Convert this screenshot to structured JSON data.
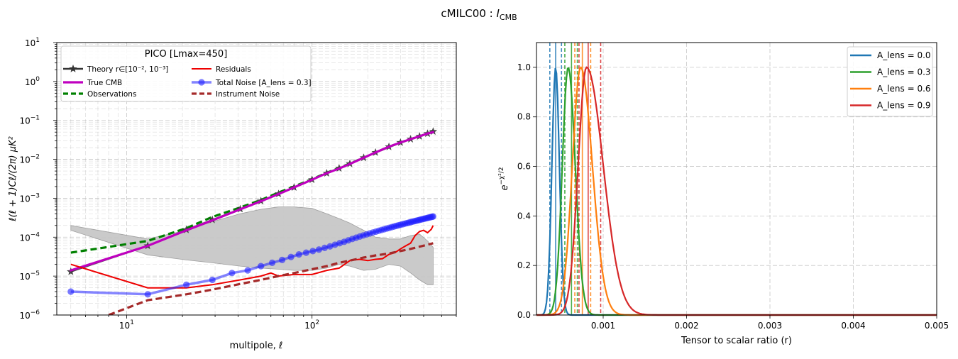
{
  "figure": {
    "suptitle": "cMILC00 : ",
    "suptitle_sym": "I",
    "suptitle_sub": "CMB"
  },
  "chart_data": [
    {
      "type": "line",
      "xscale": "log",
      "yscale": "log",
      "xlabel": "multipole, ℓ",
      "ylabel": "ℓ(ℓ + 1)Cℓ/(2π)  μK²",
      "xlim": [
        4.2,
        600
      ],
      "ylim": [
        1e-06,
        10
      ],
      "xticks": [
        {
          "v": 10,
          "b": "10",
          "e": "1"
        },
        {
          "v": 100,
          "b": "10",
          "e": "2"
        }
      ],
      "yticks": [
        {
          "v": 1e-06,
          "b": "10",
          "e": "−6"
        },
        {
          "v": 1e-05,
          "b": "10",
          "e": "−5"
        },
        {
          "v": 0.0001,
          "b": "10",
          "e": "−4"
        },
        {
          "v": 0.001,
          "b": "10",
          "e": "−3"
        },
        {
          "v": 0.01,
          "b": "10",
          "e": "−2"
        },
        {
          "v": 0.1,
          "b": "10",
          "e": "−1"
        },
        {
          "v": 1,
          "b": "10",
          "e": "0"
        },
        {
          "v": 10,
          "b": "10",
          "e": "1"
        }
      ],
      "grid": true,
      "legend": {
        "title": "PICO [Lmax=450]",
        "placement": "upper-left",
        "entries": [
          {
            "label": "Theory r∈[10⁻², 10⁻³]",
            "color": "#333333",
            "style": "star-line"
          },
          {
            "label": "True CMB",
            "color": "#bf00bf",
            "style": "thick-line"
          },
          {
            "label": "Observations",
            "color": "#008000",
            "style": "dashed"
          },
          {
            "label": "Residuals",
            "color": "#ee0000",
            "style": "line"
          },
          {
            "label": "Total Noise [A_lens = 0.3]",
            "color": "#1f1fff",
            "style": "circle-line"
          },
          {
            "label": "Instrument Noise",
            "color": "#a52a2a",
            "style": "dashed"
          }
        ]
      },
      "band": {
        "color": "#c8c8c8",
        "x": [
          5,
          13,
          21,
          29,
          41,
          53,
          66,
          80,
          100,
          120,
          140,
          160,
          190,
          220,
          260,
          300,
          340,
          380,
          420,
          450
        ],
        "lower": [
          0.00015,
          3.5e-05,
          2.6e-05,
          2.2e-05,
          1.8e-05,
          1.6e-05,
          1.5e-05,
          1.4e-05,
          1.4e-05,
          1.6e-05,
          2e-05,
          1.8e-05,
          1.4e-05,
          1.5e-05,
          2e-05,
          1.8e-05,
          1.2e-05,
          8e-06,
          6e-06,
          6e-06
        ],
        "upper": [
          0.0002,
          9e-05,
          0.00015,
          0.00025,
          0.0004,
          0.00052,
          0.0006,
          0.0006,
          0.00055,
          0.0004,
          0.0003,
          0.00023,
          0.00015,
          0.0001,
          9e-05,
          9e-05,
          0.00011,
          0.00012,
          8e-05,
          5.5e-05
        ]
      },
      "series": [
        {
          "name": "Observations",
          "color": "#008000",
          "style": "dashed",
          "x": [
            5,
            13,
            21,
            29,
            41,
            53,
            66,
            80,
            100,
            120,
            140,
            160,
            190,
            220,
            260,
            300,
            340,
            380,
            420,
            450
          ],
          "y": [
            4e-05,
            8e-05,
            0.00017,
            0.00033,
            0.00058,
            0.0009,
            0.0014,
            0.002,
            0.0031,
            0.0045,
            0.006,
            0.0078,
            0.011,
            0.015,
            0.021,
            0.027,
            0.033,
            0.039,
            0.046,
            0.052
          ]
        },
        {
          "name": "Theory r∈[10⁻², 10⁻³]",
          "color": "#333333",
          "style": "star-line",
          "x": [
            5,
            13,
            21,
            29,
            41,
            53,
            66,
            80,
            100,
            120,
            140,
            160,
            190,
            220,
            260,
            300,
            340,
            380,
            420,
            450
          ],
          "y": [
            1.3e-05,
            6e-05,
            0.000155,
            0.00028,
            0.00053,
            0.00085,
            0.0013,
            0.0019,
            0.003,
            0.0044,
            0.0059,
            0.0077,
            0.011,
            0.015,
            0.021,
            0.027,
            0.033,
            0.039,
            0.046,
            0.052
          ]
        },
        {
          "name": "True CMB",
          "color": "#bf00bf",
          "style": "thick-line",
          "x": [
            5,
            13,
            21,
            29,
            41,
            53,
            66,
            80,
            100,
            120,
            140,
            160,
            190,
            220,
            260,
            300,
            340,
            380,
            420,
            450
          ],
          "y": [
            1.4e-05,
            6e-05,
            0.00015,
            0.00027,
            0.00052,
            0.00084,
            0.00128,
            0.0019,
            0.003,
            0.0044,
            0.0058,
            0.0076,
            0.011,
            0.015,
            0.021,
            0.027,
            0.033,
            0.039,
            0.046,
            0.05
          ]
        },
        {
          "name": "Residuals",
          "color": "#ee0000",
          "style": "line",
          "x": [
            5,
            13,
            21,
            29,
            41,
            53,
            60,
            66,
            80,
            100,
            120,
            140,
            160,
            180,
            200,
            220,
            240,
            260,
            280,
            300,
            320,
            340,
            360,
            380,
            400,
            420,
            440,
            450
          ],
          "y": [
            2e-05,
            5e-06,
            5e-06,
            6e-06,
            8e-06,
            1e-05,
            1.2e-05,
            1e-05,
            1.1e-05,
            1.1e-05,
            1.4e-05,
            1.6e-05,
            2.5e-05,
            2.7e-05,
            2.5e-05,
            2.7e-05,
            2.8e-05,
            3.6e-05,
            4e-05,
            5e-05,
            6e-05,
            7e-05,
            0.00011,
            0.00014,
            0.00015,
            0.00013,
            0.00016,
            0.0002
          ]
        },
        {
          "name": "Total Noise [A_lens = 0.3]",
          "color": "#1f1fff",
          "style": "circle-line",
          "x": [
            5,
            13,
            21,
            29,
            37,
            45,
            53,
            61,
            69,
            77,
            85,
            93,
            101,
            109,
            117,
            125,
            133,
            141,
            149,
            157,
            165,
            173,
            181,
            189,
            197,
            205,
            213,
            221,
            229,
            237,
            245,
            253,
            261,
            269,
            277,
            285,
            293,
            301,
            309,
            317,
            325,
            333,
            341,
            349,
            357,
            365,
            373,
            381,
            389,
            397,
            405,
            413,
            421,
            429,
            437,
            445,
            450
          ],
          "y": [
            4e-06,
            3.4e-06,
            6e-06,
            8e-06,
            1.2e-05,
            1.4e-05,
            1.8e-05,
            2.2e-05,
            2.6e-05,
            3.1e-05,
            3.6e-05,
            4e-05,
            4.4e-05,
            4.8e-05,
            5.3e-05,
            5.8e-05,
            6.4e-05,
            7e-05,
            7.6e-05,
            8.3e-05,
            9e-05,
            9.7e-05,
            0.000104,
            0.000111,
            0.000118,
            0.000125,
            0.000132,
            0.000139,
            0.000146,
            0.000153,
            0.00016,
            0.000167,
            0.000174,
            0.000181,
            0.000188,
            0.000195,
            0.000202,
            0.000209,
            0.000216,
            0.000223,
            0.00023,
            0.000237,
            0.000244,
            0.000251,
            0.000258,
            0.000265,
            0.000272,
            0.000279,
            0.000286,
            0.000293,
            0.0003,
            0.000307,
            0.000314,
            0.000321,
            0.000328,
            0.000335,
            0.00034
          ]
        },
        {
          "name": "Instrument Noise",
          "color": "#a52a2a",
          "style": "dashed",
          "x": [
            5,
            8,
            13,
            21,
            29,
            41,
            53,
            66,
            80,
            100,
            120,
            140,
            160,
            190,
            220,
            260,
            300,
            340,
            380,
            420,
            450
          ],
          "y": [
            5e-07,
            1e-06,
            2.4e-06,
            3.4e-06,
            4.5e-06,
            6.3e-06,
            8e-06,
            1e-05,
            1.2e-05,
            1.5e-05,
            1.8e-05,
            2.2e-05,
            2.5e-05,
            3e-05,
            3.4e-05,
            3.8e-05,
            4.4e-05,
            5e-05,
            5.7e-05,
            6.4e-05,
            7e-05
          ]
        }
      ]
    },
    {
      "type": "line",
      "xlabel": "Tensor to scalar ratio (r)",
      "ylabel": "e^(−χ²/2)",
      "xlim": [
        0.0002,
        0.005
      ],
      "ylim": [
        0,
        1.1
      ],
      "xticks": [
        0.001,
        0.002,
        0.003,
        0.004,
        0.005
      ],
      "xticklabels": [
        "0.001",
        "0.002",
        "0.003",
        "0.004",
        "0.005"
      ],
      "yticks": [
        0.0,
        0.2,
        0.4,
        0.6,
        0.8,
        1.0
      ],
      "yticklabels": [
        "0.0",
        "0.2",
        "0.4",
        "0.6",
        "0.8",
        "1.0"
      ],
      "grid": true,
      "legend": {
        "placement": "upper-right"
      },
      "series": [
        {
          "name": "A_lens = 0.0",
          "color": "#1f77b4",
          "peak": 0.00043,
          "sigma_left": 4.5e-05,
          "sigma_right": 4.5e-05,
          "vlines": [
            0.00036,
            0.00043,
            0.0005
          ]
        },
        {
          "name": "A_lens = 0.3",
          "color": "#2ca02c",
          "peak": 0.00058,
          "sigma_left": 7e-05,
          "sigma_right": 8.5e-05,
          "vlines": [
            0.00054,
            0.00062,
            0.00069
          ]
        },
        {
          "name": "A_lens = 0.6",
          "color": "#ff7f0e",
          "peak": 0.00073,
          "sigma_left": 0.0001,
          "sigma_right": 0.00014,
          "vlines": [
            0.00066,
            0.00075,
            0.00085
          ]
        },
        {
          "name": "A_lens = 0.9",
          "color": "#d62728",
          "peak": 0.0008,
          "sigma_left": 0.0001,
          "sigma_right": 0.0002,
          "vlines": [
            0.00071,
            0.00082,
            0.00097
          ]
        }
      ]
    }
  ]
}
